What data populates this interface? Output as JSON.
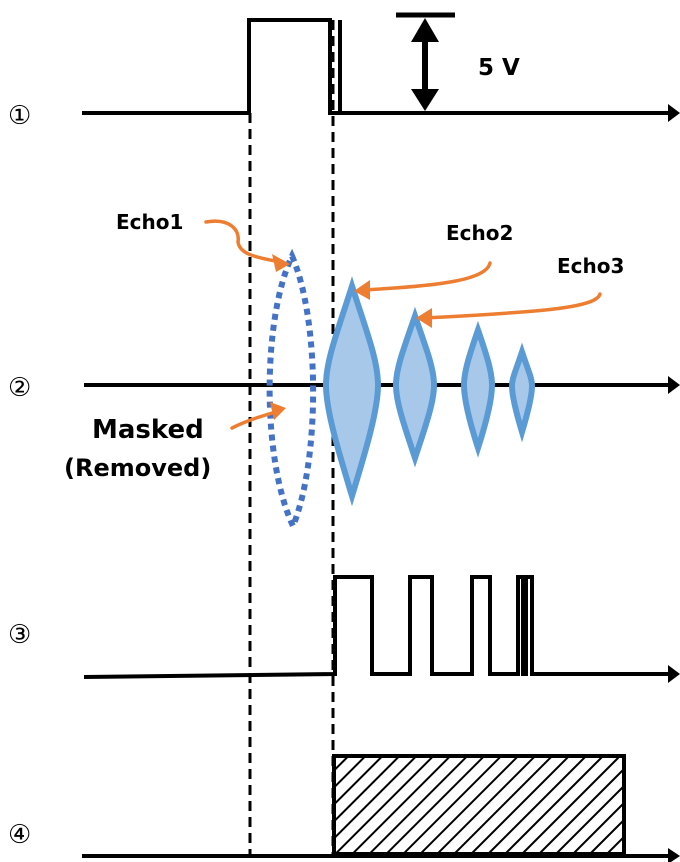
{
  "row_markers": {
    "r1": "①",
    "r2": "②",
    "r3": "③",
    "r4": "④"
  },
  "voltage_label": "5 V",
  "echo_labels": {
    "echo1": "Echo1",
    "echo2": "Echo2",
    "echo3": "Echo3"
  },
  "masked_label": {
    "line1": "Masked",
    "line2": "(Removed)"
  },
  "colors": {
    "signal": "#000000",
    "echo_fill": "#a8c8ea",
    "echo_stroke": "#5b9bd5",
    "masked_stroke": "#4472c4",
    "pointer": "#ed7d31"
  }
}
